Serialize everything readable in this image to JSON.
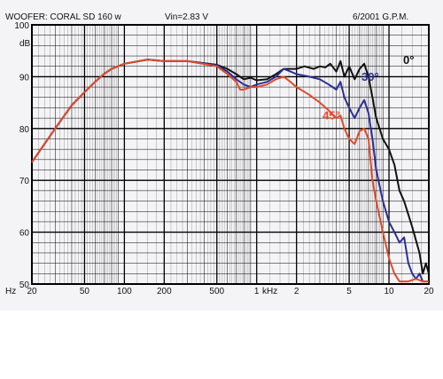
{
  "header": {
    "title": "WOOFER: CORAL SD 160 w",
    "vin": "Vin=2.83 V",
    "date": "6/2001  G.P.M."
  },
  "chart_data": {
    "type": "line",
    "xscale": "log",
    "xlim": [
      20,
      20000
    ],
    "ylim": [
      50,
      100
    ],
    "yunit": "dB",
    "xunit_left": "Hz",
    "xunit_mid": "kHz",
    "grid": true,
    "xtick_labels": [
      {
        "v": 20,
        "t": "20"
      },
      {
        "v": 50,
        "t": "50"
      },
      {
        "v": 100,
        "t": "100"
      },
      {
        "v": 200,
        "t": "200"
      },
      {
        "v": 500,
        "t": "500"
      },
      {
        "v": 1000,
        "t": "1"
      },
      {
        "v": 2000,
        "t": "2"
      },
      {
        "v": 5000,
        "t": "5"
      },
      {
        "v": 10000,
        "t": "10"
      },
      {
        "v": 20000,
        "t": "20"
      }
    ],
    "ytick_labels": [
      {
        "v": 100,
        "t": "100"
      },
      {
        "v": 90,
        "t": "90"
      },
      {
        "v": 80,
        "t": "80"
      },
      {
        "v": 70,
        "t": "70"
      },
      {
        "v": 60,
        "t": "60"
      },
      {
        "v": 50,
        "t": "50"
      }
    ],
    "series": [
      {
        "name": "0°",
        "color": "#111111",
        "points": [
          [
            20,
            73.5
          ],
          [
            30,
            80
          ],
          [
            40,
            84.5
          ],
          [
            50,
            87
          ],
          [
            60,
            89
          ],
          [
            70,
            90.5
          ],
          [
            80,
            91.5
          ],
          [
            100,
            92.5
          ],
          [
            150,
            93.3
          ],
          [
            200,
            93
          ],
          [
            300,
            93
          ],
          [
            500,
            92.3
          ],
          [
            600,
            91.5
          ],
          [
            700,
            90.5
          ],
          [
            800,
            89.5
          ],
          [
            900,
            89.8
          ],
          [
            1000,
            89.3
          ],
          [
            1200,
            89.5
          ],
          [
            1400,
            90.5
          ],
          [
            1600,
            91.5
          ],
          [
            1800,
            91.5
          ],
          [
            2000,
            91.5
          ],
          [
            2300,
            92
          ],
          [
            2700,
            91.5
          ],
          [
            3000,
            92
          ],
          [
            3300,
            91.8
          ],
          [
            3600,
            92.5
          ],
          [
            4000,
            91
          ],
          [
            4300,
            93
          ],
          [
            4600,
            90
          ],
          [
            5000,
            92
          ],
          [
            5500,
            89.5
          ],
          [
            6000,
            91.5
          ],
          [
            6500,
            92.5
          ],
          [
            7000,
            90
          ],
          [
            7500,
            86
          ],
          [
            8000,
            82
          ],
          [
            9000,
            78
          ],
          [
            10000,
            76
          ],
          [
            11000,
            73
          ],
          [
            12000,
            68
          ],
          [
            13000,
            66
          ],
          [
            15000,
            61
          ],
          [
            17000,
            56
          ],
          [
            18000,
            52
          ],
          [
            19000,
            54
          ],
          [
            20000,
            52
          ]
        ]
      },
      {
        "name": "30°",
        "color": "#2a2f96",
        "points": [
          [
            20,
            73.5
          ],
          [
            30,
            80
          ],
          [
            40,
            84.5
          ],
          [
            50,
            87
          ],
          [
            60,
            89
          ],
          [
            70,
            90.5
          ],
          [
            80,
            91.5
          ],
          [
            100,
            92.5
          ],
          [
            150,
            93.3
          ],
          [
            200,
            93
          ],
          [
            300,
            93
          ],
          [
            500,
            92.2
          ],
          [
            600,
            91
          ],
          [
            700,
            89.5
          ],
          [
            800,
            88.5
          ],
          [
            900,
            88
          ],
          [
            1000,
            88.5
          ],
          [
            1200,
            89
          ],
          [
            1400,
            90
          ],
          [
            1600,
            91.5
          ],
          [
            1800,
            91
          ],
          [
            2000,
            90.5
          ],
          [
            2500,
            90
          ],
          [
            3000,
            89.5
          ],
          [
            3500,
            88.5
          ],
          [
            4000,
            87.5
          ],
          [
            4300,
            89
          ],
          [
            4600,
            86
          ],
          [
            5000,
            84
          ],
          [
            5500,
            82
          ],
          [
            6000,
            84
          ],
          [
            6500,
            85.5
          ],
          [
            7000,
            83
          ],
          [
            7500,
            78
          ],
          [
            8000,
            72
          ],
          [
            9000,
            66
          ],
          [
            10000,
            62
          ],
          [
            11000,
            60
          ],
          [
            12000,
            58
          ],
          [
            13000,
            59
          ],
          [
            14000,
            54
          ],
          [
            15000,
            52
          ],
          [
            16000,
            51
          ],
          [
            17000,
            52
          ],
          [
            18000,
            50.5
          ],
          [
            20000,
            50.5
          ]
        ]
      },
      {
        "name": "45°",
        "color": "#e04a2a",
        "points": [
          [
            20,
            73.5
          ],
          [
            30,
            80
          ],
          [
            40,
            84.5
          ],
          [
            50,
            87
          ],
          [
            60,
            89
          ],
          [
            70,
            90.5
          ],
          [
            80,
            91.5
          ],
          [
            100,
            92.5
          ],
          [
            150,
            93.3
          ],
          [
            200,
            93
          ],
          [
            300,
            93
          ],
          [
            500,
            92
          ],
          [
            600,
            90.5
          ],
          [
            700,
            89
          ],
          [
            750,
            87.5
          ],
          [
            800,
            87.5
          ],
          [
            900,
            88
          ],
          [
            1000,
            88
          ],
          [
            1200,
            88.5
          ],
          [
            1400,
            89.5
          ],
          [
            1600,
            90
          ],
          [
            1800,
            89
          ],
          [
            2000,
            88
          ],
          [
            2500,
            86.5
          ],
          [
            3000,
            85
          ],
          [
            3500,
            83.5
          ],
          [
            4000,
            82
          ],
          [
            4300,
            82.5
          ],
          [
            4600,
            80
          ],
          [
            5000,
            78
          ],
          [
            5500,
            77
          ],
          [
            6000,
            79.5
          ],
          [
            6500,
            80
          ],
          [
            7000,
            78
          ],
          [
            7500,
            70
          ],
          [
            8000,
            66
          ],
          [
            9000,
            60
          ],
          [
            10000,
            55
          ],
          [
            11000,
            52
          ],
          [
            12000,
            50.5
          ],
          [
            14000,
            50.5
          ],
          [
            16000,
            51
          ],
          [
            18000,
            50.5
          ],
          [
            20000,
            50.5
          ]
        ]
      }
    ]
  }
}
